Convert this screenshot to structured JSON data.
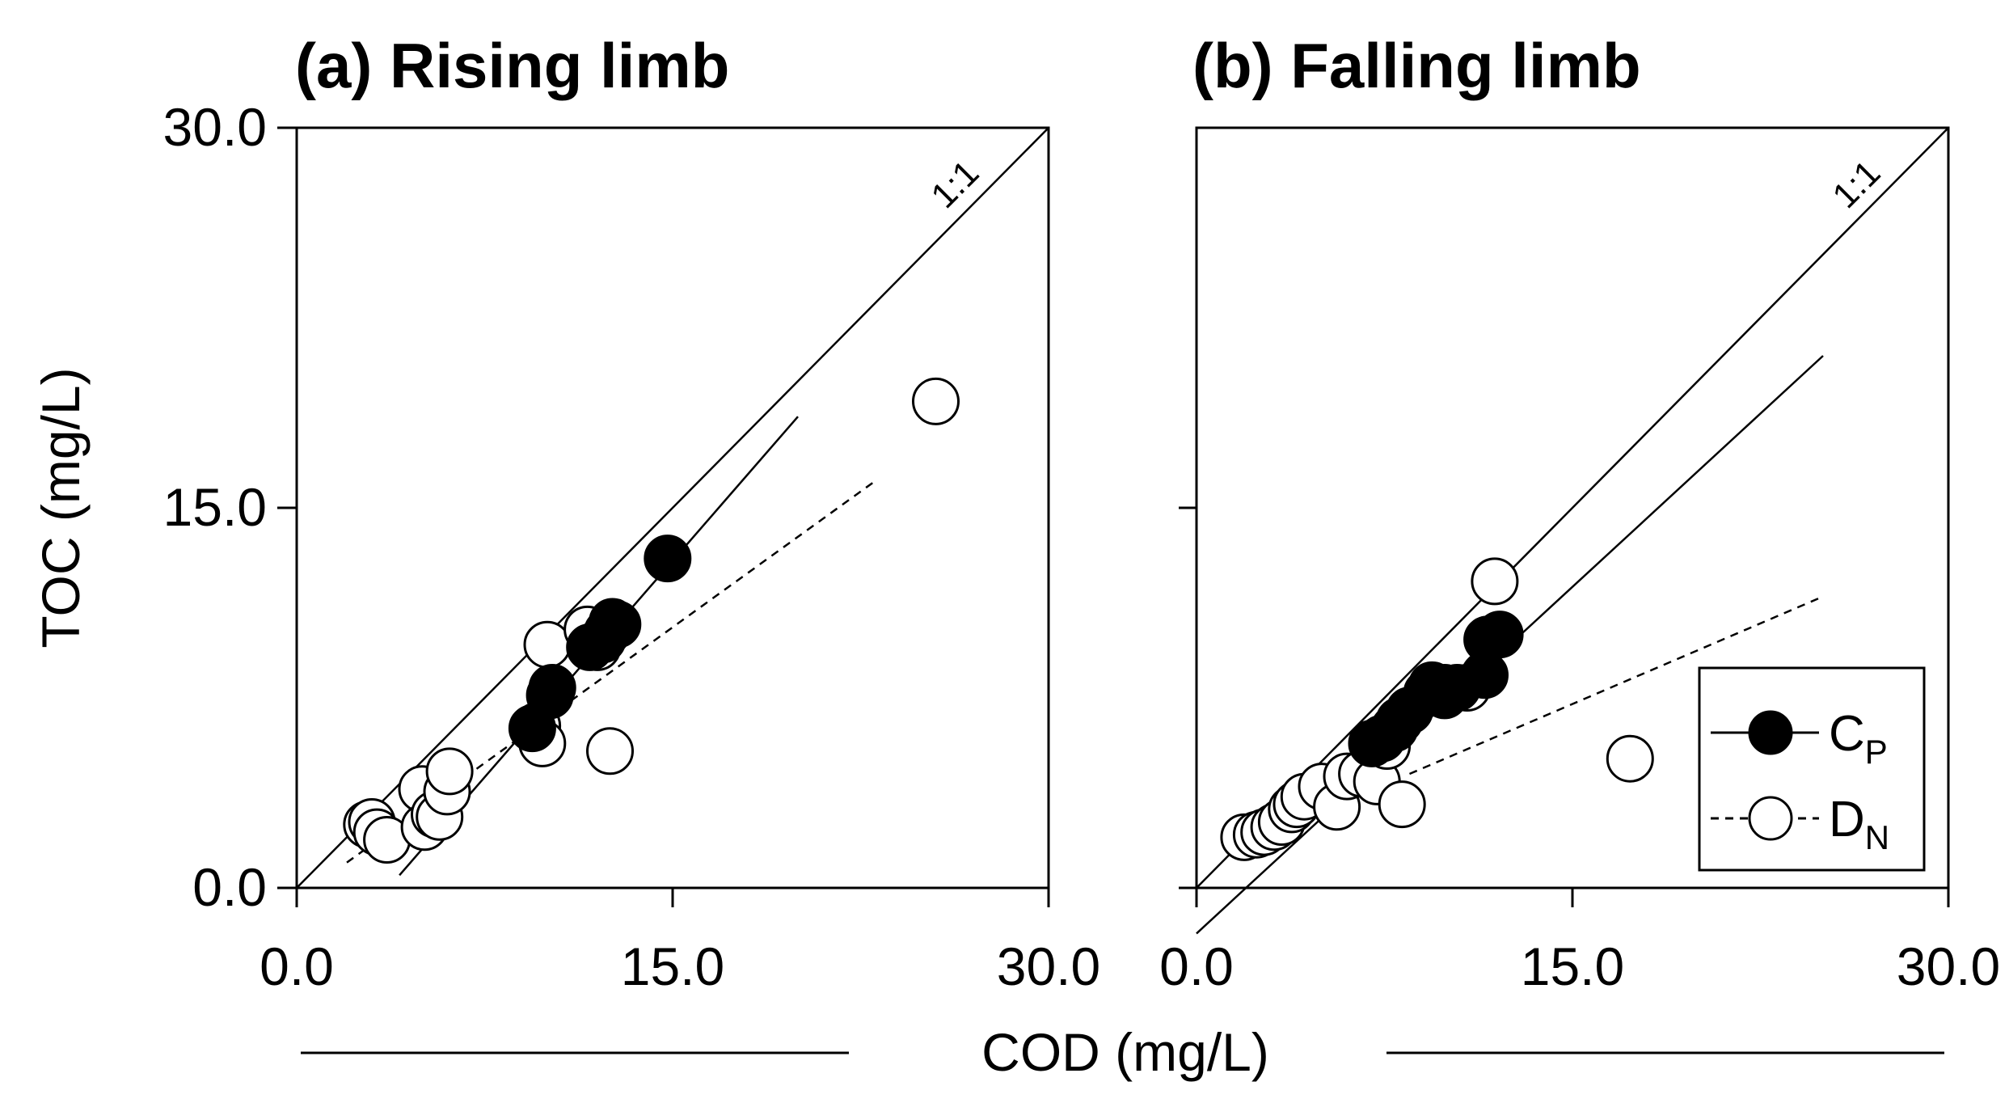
{
  "xlabel": "COD (mg/L)",
  "ylabel": "TOC (mg/L)",
  "legend": [
    {
      "label": "C",
      "sub": "P",
      "fill": "#000000",
      "line": "solid"
    },
    {
      "label": "D",
      "sub": "N",
      "fill": "#ffffff",
      "line": "dashed"
    }
  ],
  "chart_data": [
    {
      "type": "scatter",
      "title": "(a) Rising limb",
      "xlabel": "COD (mg/L)",
      "ylabel": "TOC (mg/L)",
      "xlim": [
        0,
        30
      ],
      "ylim": [
        0,
        30
      ],
      "xticks": [
        "0.0",
        "15.0",
        "30.0"
      ],
      "yticks": [
        "0.0",
        "15.0",
        "30.0"
      ],
      "ref_line": {
        "label": "1:1",
        "x": [
          0,
          30
        ],
        "y": [
          0,
          30
        ]
      },
      "series": [
        {
          "name": "CP",
          "fill": "#000000",
          "points": [
            [
              9.4,
              6.3
            ],
            [
              10.1,
              7.6
            ],
            [
              10.2,
              7.9
            ],
            [
              11.7,
              9.5
            ],
            [
              12.2,
              9.8
            ],
            [
              12.4,
              10.1
            ],
            [
              12.6,
              10.5
            ],
            [
              12.8,
              10.4
            ],
            [
              14.8,
              13.0
            ]
          ],
          "fit": {
            "x": [
              4.1,
              20.0
            ],
            "y": [
              0.5,
              18.6
            ],
            "style": "solid"
          }
        },
        {
          "name": "DN",
          "fill": "#ffffff",
          "points": [
            [
              2.8,
              2.5
            ],
            [
              3.0,
              2.6
            ],
            [
              3.2,
              2.2
            ],
            [
              3.6,
              1.9
            ],
            [
              5.0,
              3.9
            ],
            [
              5.1,
              2.4
            ],
            [
              5.5,
              2.9
            ],
            [
              5.7,
              2.8
            ],
            [
              6.0,
              3.8
            ],
            [
              6.1,
              4.6
            ],
            [
              9.6,
              6.4
            ],
            [
              9.8,
              5.7
            ],
            [
              10.0,
              9.6
            ],
            [
              11.6,
              10.2
            ],
            [
              12.0,
              9.5
            ],
            [
              12.5,
              5.4
            ],
            [
              25.5,
              19.2
            ]
          ],
          "fit": {
            "x": [
              2.0,
              23.0
            ],
            "y": [
              1.0,
              16.0
            ],
            "style": "dashed"
          }
        }
      ]
    },
    {
      "type": "scatter",
      "title": "(b) Falling limb",
      "xlabel": "COD (mg/L)",
      "ylabel": "TOC (mg/L)",
      "xlim": [
        0,
        30
      ],
      "ylim": [
        0,
        30
      ],
      "xticks": [
        "0.0",
        "15.0",
        "30.0"
      ],
      "yticks": [
        "",
        "",
        ""
      ],
      "ref_line": {
        "label": "1:1",
        "x": [
          0,
          30
        ],
        "y": [
          0,
          30
        ]
      },
      "series": [
        {
          "name": "CP",
          "fill": "#000000",
          "points": [
            [
              7.0,
              5.7
            ],
            [
              7.4,
              5.9
            ],
            [
              7.9,
              6.3
            ],
            [
              8.1,
              6.6
            ],
            [
              8.5,
              7.0
            ],
            [
              9.2,
              7.7
            ],
            [
              9.4,
              8.0
            ],
            [
              9.9,
              7.6
            ],
            [
              10.4,
              7.9
            ],
            [
              11.5,
              8.4
            ],
            [
              11.6,
              9.8
            ],
            [
              12.1,
              10.0
            ]
          ],
          "fit": {
            "x": [
              0.0,
              25.0
            ],
            "y": [
              -1.8,
              21.0
            ],
            "style": "solid"
          }
        },
        {
          "name": "DN",
          "fill": "#ffffff",
          "points": [
            [
              1.9,
              2.0
            ],
            [
              2.4,
              2.1
            ],
            [
              2.7,
              2.2
            ],
            [
              3.1,
              2.4
            ],
            [
              3.4,
              2.6
            ],
            [
              3.8,
              3.1
            ],
            [
              4.0,
              3.3
            ],
            [
              4.3,
              3.6
            ],
            [
              5.0,
              4.0
            ],
            [
              5.6,
              3.2
            ],
            [
              6.0,
              4.4
            ],
            [
              6.6,
              4.5
            ],
            [
              7.2,
              4.2
            ],
            [
              7.6,
              5.6
            ],
            [
              8.2,
              3.3
            ],
            [
              9.9,
              7.9
            ],
            [
              10.8,
              7.9
            ],
            [
              11.9,
              12.1
            ],
            [
              17.3,
              5.1
            ]
          ],
          "fit": {
            "x": [
              8.5,
              25.0
            ],
            "y": [
              4.5,
              11.5
            ],
            "style": "dashed"
          }
        }
      ]
    }
  ]
}
